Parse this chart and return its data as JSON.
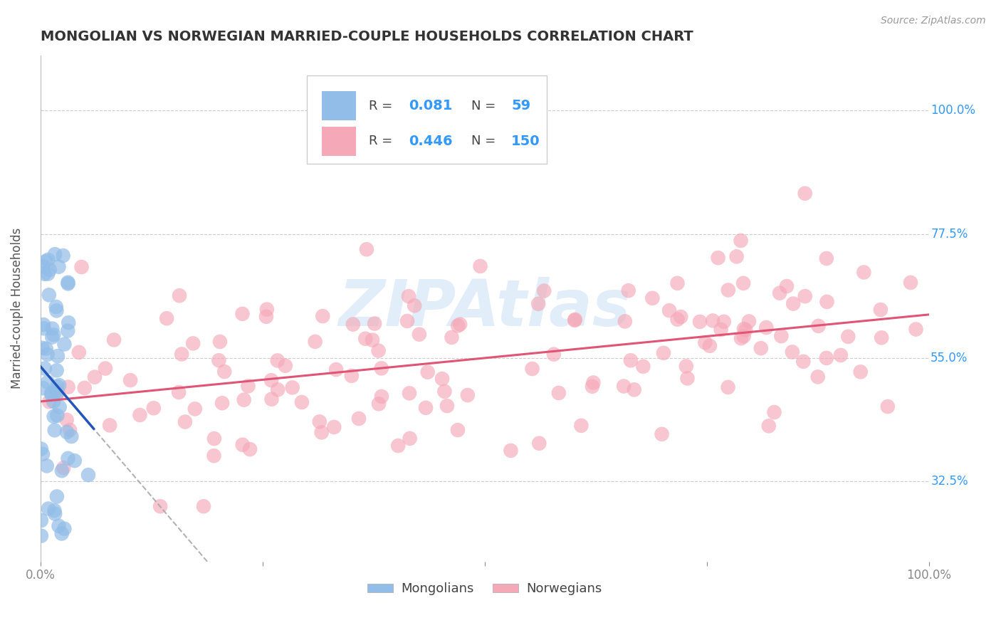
{
  "title": "MONGOLIAN VS NORWEGIAN MARRIED-COUPLE HOUSEHOLDS CORRELATION CHART",
  "source": "Source: ZipAtlas.com",
  "ylabel": "Married-couple Households",
  "xlim": [
    0.0,
    1.0
  ],
  "ylim": [
    0.18,
    1.1
  ],
  "yticks": [
    0.325,
    0.55,
    0.775,
    1.0
  ],
  "ytick_labels": [
    "32.5%",
    "55.0%",
    "77.5%",
    "100.0%"
  ],
  "mongolian_R": 0.081,
  "mongolian_N": 59,
  "norwegian_R": 0.446,
  "norwegian_N": 150,
  "mongolian_color": "#92bde8",
  "norwegian_color": "#f5a8b8",
  "mongolian_line_color": "#2255bb",
  "norwegian_line_color": "#e05575",
  "dashed_line_color": "#aaaaaa",
  "watermark": "ZIPAtlas",
  "watermark_color": "#aaccee",
  "background_color": "#ffffff",
  "grid_color": "#cccccc",
  "tick_label_color": "#3399ff",
  "title_color": "#333333",
  "source_color": "#999999"
}
